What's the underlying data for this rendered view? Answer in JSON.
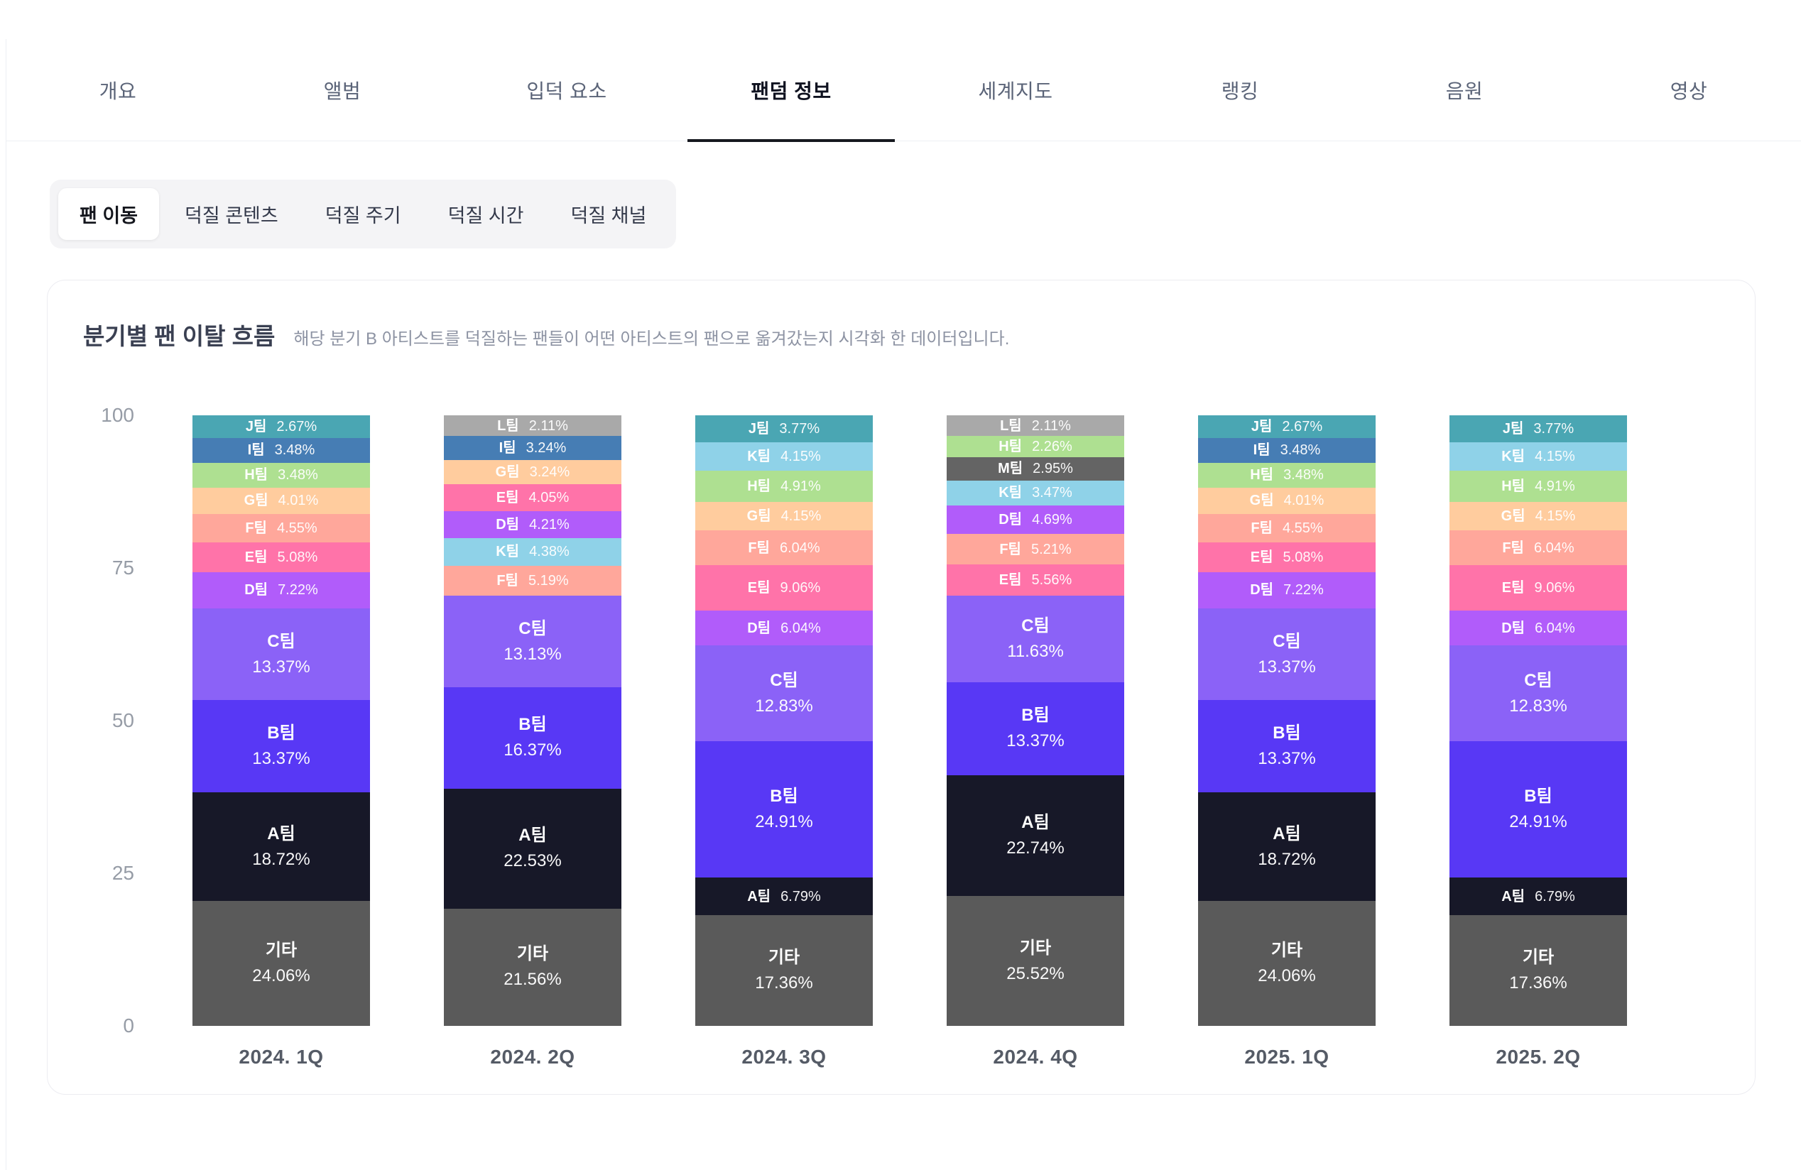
{
  "nav": {
    "tabs": [
      {
        "label": "개요",
        "active": false
      },
      {
        "label": "앨범",
        "active": false
      },
      {
        "label": "입덕 요소",
        "active": false
      },
      {
        "label": "팬덤 정보",
        "active": true
      },
      {
        "label": "세계지도",
        "active": false
      },
      {
        "label": "랭킹",
        "active": false
      },
      {
        "label": "음원",
        "active": false
      },
      {
        "label": "영상",
        "active": false
      }
    ]
  },
  "subtabs": {
    "items": [
      {
        "label": "팬 이동",
        "active": true
      },
      {
        "label": "덕질 콘텐츠",
        "active": false
      },
      {
        "label": "덕질 주기",
        "active": false
      },
      {
        "label": "덕질 시간",
        "active": false
      },
      {
        "label": "덕질 채널",
        "active": false
      }
    ]
  },
  "panel": {
    "title": "분기별 팬 이탈 흐름",
    "subtitle": "해당 분기 B 아티스트를 덕질하는 팬들이 어떤 아티스트의 팬으로 옮겨갔는지 시각화 한 데이터입니다."
  },
  "chart_data": {
    "type": "bar",
    "stacked": true,
    "unit": "%",
    "ylim": [
      0,
      100
    ],
    "yticks": [
      100,
      75,
      50,
      25,
      0
    ],
    "grid": false,
    "legend": "none",
    "label_two_line_threshold": 10,
    "team_colors": {
      "J팀": "#4AA6B3",
      "I팀": "#467DB4",
      "H팀": "#AEE091",
      "G팀": "#FFCC9E",
      "F팀": "#FFA79B",
      "E팀": "#FF73A9",
      "D팀": "#B15CFA",
      "C팀": "#8B62F7",
      "B팀": "#5838F5",
      "A팀": "#171828",
      "K팀": "#8FD2E8",
      "L팀": "#A9A9A9",
      "M팀": "#646464",
      "기타": "#5A5A5A"
    },
    "categories": [
      "2024. 1Q",
      "2024. 2Q",
      "2024. 3Q",
      "2024. 4Q",
      "2025. 1Q",
      "2025. 2Q"
    ],
    "quarters": [
      {
        "label": "2024. 1Q",
        "segments": [
          {
            "name": "J팀",
            "value": 2.67
          },
          {
            "name": "I팀",
            "value": 3.48
          },
          {
            "name": "H팀",
            "value": 3.48
          },
          {
            "name": "G팀",
            "value": 4.01
          },
          {
            "name": "F팀",
            "value": 4.55
          },
          {
            "name": "E팀",
            "value": 5.08
          },
          {
            "name": "D팀",
            "value": 7.22
          },
          {
            "name": "C팀",
            "value": 13.37
          },
          {
            "name": "B팀",
            "value": 13.37
          },
          {
            "name": "A팀",
            "value": 18.72
          },
          {
            "name": "기타",
            "value": 24.06
          }
        ]
      },
      {
        "label": "2024. 2Q",
        "segments": [
          {
            "name": "L팀",
            "value": 2.11
          },
          {
            "name": "I팀",
            "value": 3.24
          },
          {
            "name": "G팀",
            "value": 3.24
          },
          {
            "name": "E팀",
            "value": 4.05
          },
          {
            "name": "D팀",
            "value": 4.21
          },
          {
            "name": "K팀",
            "value": 4.38
          },
          {
            "name": "F팀",
            "value": 5.19
          },
          {
            "name": "C팀",
            "value": 13.13
          },
          {
            "name": "B팀",
            "value": 16.37
          },
          {
            "name": "A팀",
            "value": 22.53
          },
          {
            "name": "기타",
            "value": 21.56
          }
        ]
      },
      {
        "label": "2024. 3Q",
        "segments": [
          {
            "name": "J팀",
            "value": 3.77
          },
          {
            "name": "K팀",
            "value": 4.15
          },
          {
            "name": "H팀",
            "value": 4.91
          },
          {
            "name": "G팀",
            "value": 4.15
          },
          {
            "name": "F팀",
            "value": 6.04
          },
          {
            "name": "E팀",
            "value": 9.06
          },
          {
            "name": "D팀",
            "value": 6.04
          },
          {
            "name": "C팀",
            "value": 12.83
          },
          {
            "name": "B팀",
            "value": 24.91
          },
          {
            "name": "A팀",
            "value": 6.79
          },
          {
            "name": "기타",
            "value": 17.36
          }
        ]
      },
      {
        "label": "2024. 4Q",
        "segments": [
          {
            "name": "L팀",
            "value": 2.11
          },
          {
            "name": "H팀",
            "value": 2.26
          },
          {
            "name": "M팀",
            "value": 2.95
          },
          {
            "name": "K팀",
            "value": 3.47
          },
          {
            "name": "D팀",
            "value": 4.69
          },
          {
            "name": "F팀",
            "value": 5.21
          },
          {
            "name": "E팀",
            "value": 5.56
          },
          {
            "name": "C팀",
            "value": 11.63
          },
          {
            "name": "B팀",
            "value": 13.37
          },
          {
            "name": "A팀",
            "value": 22.74
          },
          {
            "name": "기타",
            "value": 25.52
          }
        ]
      },
      {
        "label": "2025. 1Q",
        "segments": [
          {
            "name": "J팀",
            "value": 2.67
          },
          {
            "name": "I팀",
            "value": 3.48
          },
          {
            "name": "H팀",
            "value": 3.48
          },
          {
            "name": "G팀",
            "value": 4.01
          },
          {
            "name": "F팀",
            "value": 4.55
          },
          {
            "name": "E팀",
            "value": 5.08
          },
          {
            "name": "D팀",
            "value": 7.22
          },
          {
            "name": "C팀",
            "value": 13.37
          },
          {
            "name": "B팀",
            "value": 13.37
          },
          {
            "name": "A팀",
            "value": 18.72
          },
          {
            "name": "기타",
            "value": 24.06
          }
        ]
      },
      {
        "label": "2025. 2Q",
        "segments": [
          {
            "name": "J팀",
            "value": 3.77
          },
          {
            "name": "K팀",
            "value": 4.15
          },
          {
            "name": "H팀",
            "value": 4.91
          },
          {
            "name": "G팀",
            "value": 4.15
          },
          {
            "name": "F팀",
            "value": 6.04
          },
          {
            "name": "E팀",
            "value": 9.06
          },
          {
            "name": "D팀",
            "value": 6.04
          },
          {
            "name": "C팀",
            "value": 12.83
          },
          {
            "name": "B팀",
            "value": 24.91
          },
          {
            "name": "A팀",
            "value": 6.79
          },
          {
            "name": "기타",
            "value": 17.36
          }
        ]
      }
    ]
  }
}
